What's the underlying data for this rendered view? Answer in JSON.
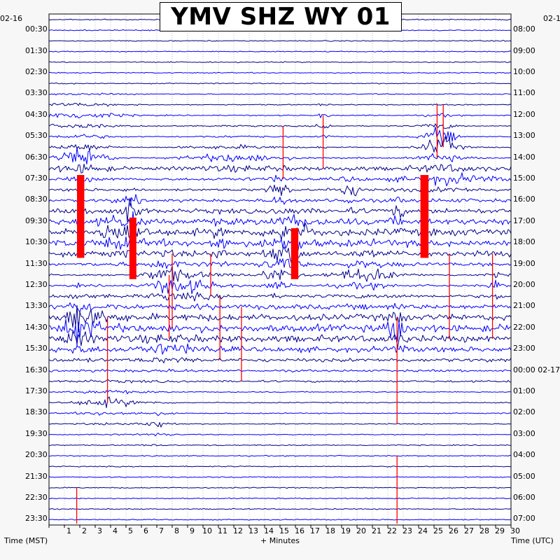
{
  "title": "YMV SHZ WY 01",
  "left_date": "02-16",
  "right_date": "02-1",
  "left_axis_label": "Time (MST)",
  "bottom_axis_label": "+ Minutes",
  "right_axis_label": "Time (UTC)",
  "chart_data": {
    "type": "helicorder",
    "station": "YMV",
    "channel": "SHZ",
    "network": "WY",
    "location": "01",
    "x_label": "+ Minutes",
    "x_range": [
      0,
      30
    ],
    "x_ticks": [
      "1",
      "2",
      "3",
      "4",
      "5",
      "6",
      "7",
      "8",
      "9",
      "10",
      "11",
      "12",
      "13",
      "14",
      "15",
      "16",
      "17",
      "18",
      "19",
      "20",
      "21",
      "22",
      "23",
      "24",
      "25",
      "26",
      "27",
      "28",
      "29",
      "30"
    ],
    "left_ticks": [
      "00:30",
      "01:30",
      "02:30",
      "03:30",
      "04:30",
      "05:30",
      "06:30",
      "07:30",
      "08:30",
      "09:30",
      "10:30",
      "11:30",
      "12:30",
      "13:30",
      "14:30",
      "15:30",
      "16:30",
      "17:30",
      "18:30",
      "19:30",
      "20:30",
      "21:30",
      "22:30",
      "23:30"
    ],
    "right_ticks": [
      "08:00",
      "09:00",
      "10:00",
      "11:00",
      "12:00",
      "13:00",
      "14:00",
      "15:00",
      "16:00",
      "17:00",
      "18:00",
      "19:00",
      "20:00",
      "21:00",
      "22:00",
      "23:00",
      "00:00 02-17",
      "01:00",
      "02:00",
      "03:00",
      "04:00",
      "05:00",
      "06:00",
      "07:00"
    ],
    "trace_count": 48,
    "trace_colors": [
      "#00008b",
      "#0000ff"
    ],
    "clip_color": "#ff0000",
    "grid": true
  }
}
